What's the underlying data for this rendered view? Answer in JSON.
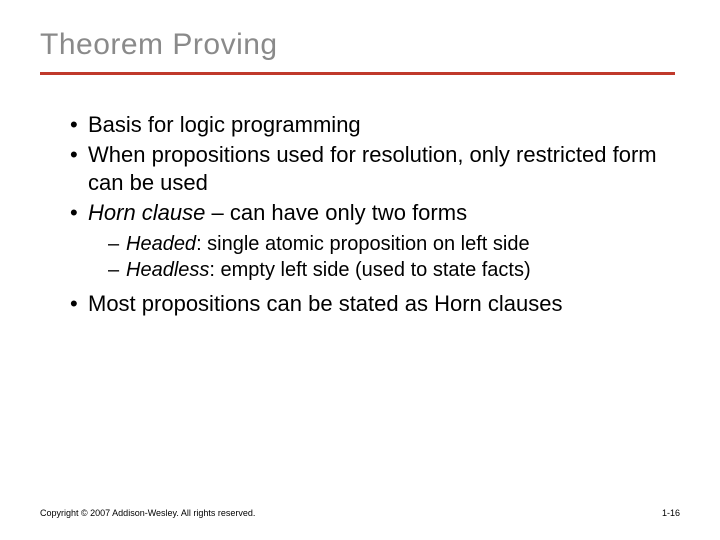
{
  "title": "Theorem Proving",
  "bullets": {
    "b1": "Basis for logic programming",
    "b2": "When propositions used for resolution, only restricted form can be used",
    "b3_term": "Horn clause",
    "b3_rest": " – can have only two forms",
    "s1_term": "Headed",
    "s1_rest": ": single atomic proposition on left side",
    "s2_term": "Headless",
    "s2_rest": ": empty left side (used to state facts)",
    "b4": "Most propositions can be stated as Horn clauses"
  },
  "footer": {
    "copyright": "Copyright © 2007 Addison-Wesley. All rights reserved.",
    "page": "1-16"
  },
  "style": {
    "slide_width": 720,
    "slide_height": 540,
    "title_color": "#8a8a8a",
    "title_fontsize": 30,
    "rule_color": "#c0392b",
    "rule_height": 3,
    "body_fontsize": 22,
    "sub_fontsize": 20,
    "footer_fontsize": 9,
    "background": "#ffffff",
    "text_color": "#000000",
    "font_family": "Verdana"
  }
}
